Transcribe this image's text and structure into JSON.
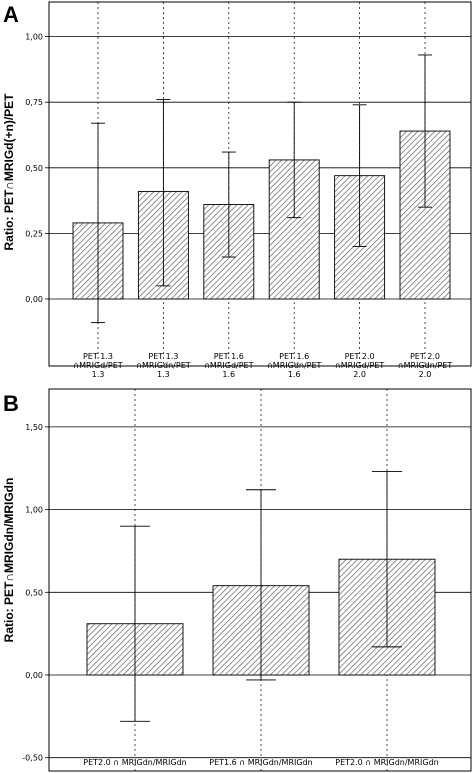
{
  "panels": [
    {
      "letter": "A"
    },
    {
      "letter": "B"
    }
  ],
  "chart_data": [
    {
      "type": "bar",
      "panel": "A",
      "ylabel": "Ratio: PET∩MRIGd(+n)/PET",
      "xlabel": "",
      "ylim": [
        -0.2,
        1.1
      ],
      "yticks": [
        0.0,
        0.25,
        0.5,
        0.75,
        1.0
      ],
      "ytick_labels": [
        "0,00",
        "0,25",
        "0,50",
        "0,75",
        "1,00"
      ],
      "grid": "horizontal",
      "categories": [
        [
          "PET 1.3",
          "∩MRIGd/PET",
          "1.3"
        ],
        [
          "PET 1.3",
          "∩MRIGdn/PET",
          "1.3"
        ],
        [
          "PET 1.6",
          "∩MRIGd/PET",
          "1.6"
        ],
        [
          "PET 1.6",
          "∩MRIGdn/PET",
          "1.6"
        ],
        [
          "PET 2.0",
          "∩MRIGd/PET",
          "2.0"
        ],
        [
          "PET 2.0",
          "∩MRIGdn/PET",
          "2.0"
        ]
      ],
      "values": [
        0.29,
        0.41,
        0.36,
        0.53,
        0.47,
        0.64
      ],
      "error_low": [
        -0.09,
        0.05,
        0.16,
        0.31,
        0.2,
        0.35
      ],
      "error_high": [
        0.67,
        0.76,
        0.56,
        0.75,
        0.74,
        0.93
      ]
    },
    {
      "type": "bar",
      "panel": "B",
      "ylabel": "Ratio: PET∩MRIGdn/MRIGdn",
      "xlabel": "",
      "ylim": [
        -0.5,
        1.75
      ],
      "yticks": [
        -0.5,
        0.0,
        0.5,
        1.0,
        1.5
      ],
      "ytick_labels": [
        "-0,50",
        "0,00",
        "0,50",
        "1,00",
        "1,50"
      ],
      "grid": "horizontal",
      "categories": [
        [
          "PET2.0 ∩ MRIGdn/MRIGdn"
        ],
        [
          "PET1.6 ∩ MRIGdn/MRIGdn"
        ],
        [
          "PET2.0 ∩ MRIGdn/MRIGdn"
        ]
      ],
      "values": [
        0.31,
        0.54,
        0.7
      ],
      "error_low": [
        -0.28,
        -0.03,
        0.17
      ],
      "error_high": [
        0.9,
        1.12,
        1.23
      ]
    }
  ]
}
